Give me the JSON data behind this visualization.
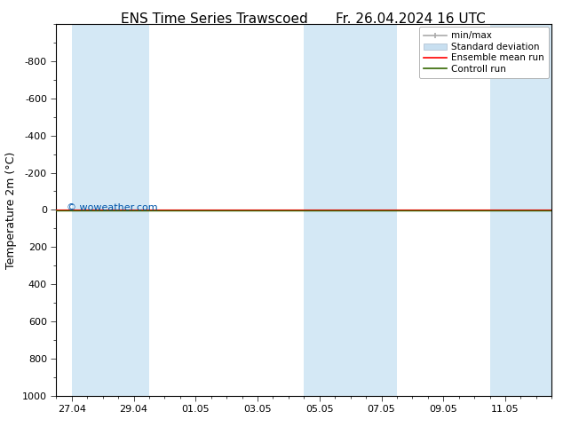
{
  "title_left": "ENS Time Series Trawscoed",
  "title_right": "Fr. 26.04.2024 16 UTC",
  "ylabel": "Temperature 2m (°C)",
  "ylim": [
    -1000,
    1000
  ],
  "yticks": [
    -800,
    -600,
    -400,
    -200,
    0,
    200,
    400,
    600,
    800,
    1000
  ],
  "xtick_labels": [
    "27.04",
    "29.04",
    "01.05",
    "03.05",
    "05.05",
    "07.05",
    "09.05",
    "11.05"
  ],
  "xtick_positions": [
    0,
    2,
    4,
    6,
    8,
    10,
    12,
    14
  ],
  "xlim": [
    -0.5,
    15.5
  ],
  "watermark": "© woweather.com",
  "watermark_color": "#0055aa",
  "background_color": "#ffffff",
  "plot_bg_color": "#ffffff",
  "shaded_bands_color": "#d4e8f5",
  "shaded_bands": [
    [
      0.0,
      1.5
    ],
    [
      1.5,
      2.5
    ],
    [
      7.5,
      9.0
    ],
    [
      9.0,
      10.5
    ],
    [
      13.5,
      15.5
    ]
  ],
  "horizontal_line_color_red": "#ff0000",
  "horizontal_line_color_green": "#336600",
  "legend_labels": [
    "min/max",
    "Standard deviation",
    "Ensemble mean run",
    "Controll run"
  ],
  "legend_color_minmax": "#aaaaaa",
  "legend_color_std": "#c8dff0",
  "legend_color_mean": "#ff0000",
  "legend_color_control": "#336600",
  "title_fontsize": 11,
  "tick_fontsize": 8,
  "ylabel_fontsize": 9,
  "legend_fontsize": 7.5
}
